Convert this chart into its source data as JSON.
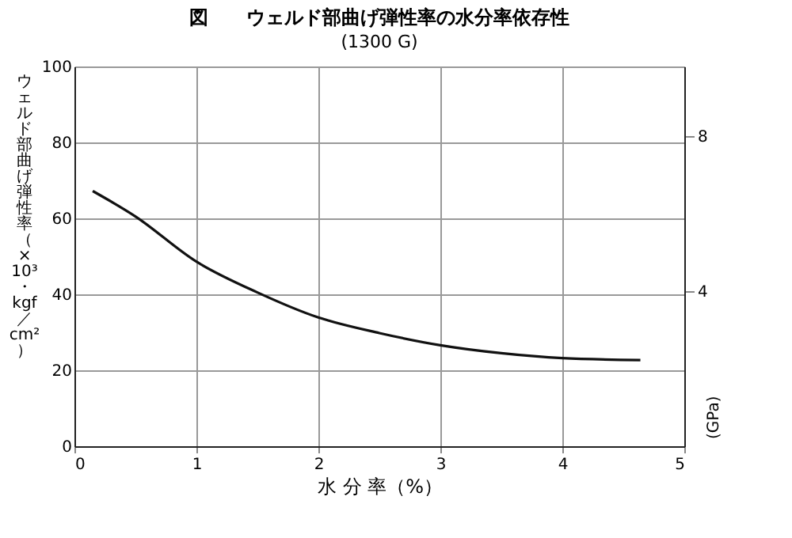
{
  "chart_data": {
    "type": "line",
    "title": "図　　ウェルド部曲げ弾性率の水分率依存性",
    "subtitle": "(1300 G)",
    "xlabel": "水 分 率（%）",
    "ylabel": "ウェルド部曲げ弾性率（×10³・kgf／cm²）",
    "y2label": "(GPa)",
    "x": [
      0.15,
      0.5,
      1,
      1.5,
      2,
      2.5,
      3,
      3.5,
      4,
      4.64
    ],
    "series": [
      {
        "color": "#111111",
        "values": [
          67.2,
          60.5,
          48.6,
          40.5,
          33.9,
          29.8,
          26.6,
          24.5,
          23.2,
          22.7
        ]
      }
    ],
    "xlim": [
      0,
      5
    ],
    "xticks": [
      0,
      1,
      2,
      3,
      4,
      5
    ],
    "ylim": [
      0,
      100
    ],
    "yticks": [
      0,
      20,
      40,
      60,
      80,
      100
    ],
    "y2lim": [
      0,
      9.8
    ],
    "y2ticks": [
      4,
      8
    ],
    "grid": true,
    "marker": "none",
    "line_style": "solid"
  }
}
